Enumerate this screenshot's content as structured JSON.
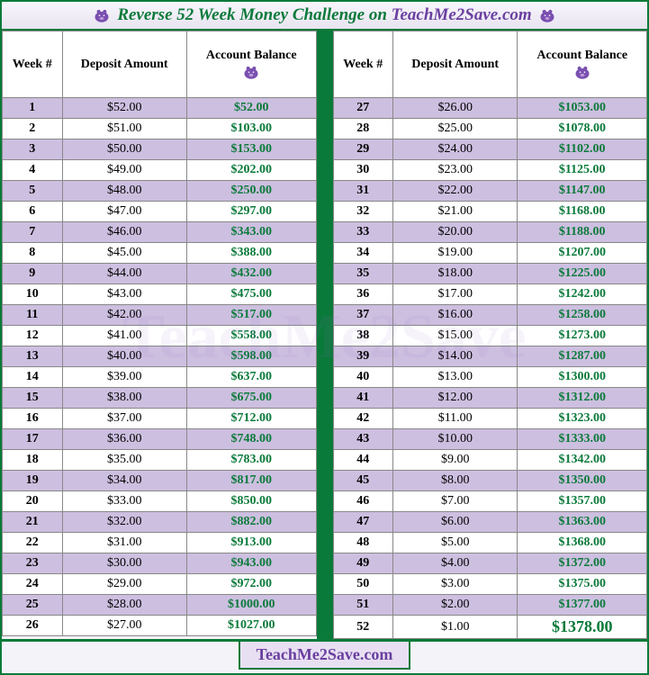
{
  "title": {
    "part1": "Reverse 52 Week Money Challenge on ",
    "part2": "TeachMe2Save.com"
  },
  "footer": "TeachMe2Save.com",
  "columns": [
    "Week #",
    "Deposit Amount",
    "Account Balance"
  ],
  "piggy_color": "#7a4fb0",
  "colors": {
    "green": "#0a7a3a",
    "purple": "#6a3fa0",
    "row_odd": "#cdbfe0",
    "row_even": "#ffffff",
    "border": "#888888"
  },
  "left": [
    {
      "w": "1",
      "d": "$52.00",
      "b": "$52.00"
    },
    {
      "w": "2",
      "d": "$51.00",
      "b": "$103.00"
    },
    {
      "w": "3",
      "d": "$50.00",
      "b": "$153.00"
    },
    {
      "w": "4",
      "d": "$49.00",
      "b": "$202.00"
    },
    {
      "w": "5",
      "d": "$48.00",
      "b": "$250.00"
    },
    {
      "w": "6",
      "d": "$47.00",
      "b": "$297.00"
    },
    {
      "w": "7",
      "d": "$46.00",
      "b": "$343.00"
    },
    {
      "w": "8",
      "d": "$45.00",
      "b": "$388.00"
    },
    {
      "w": "9",
      "d": "$44.00",
      "b": "$432.00"
    },
    {
      "w": "10",
      "d": "$43.00",
      "b": "$475.00"
    },
    {
      "w": "11",
      "d": "$42.00",
      "b": "$517.00"
    },
    {
      "w": "12",
      "d": "$41.00",
      "b": "$558.00"
    },
    {
      "w": "13",
      "d": "$40.00",
      "b": "$598.00"
    },
    {
      "w": "14",
      "d": "$39.00",
      "b": "$637.00"
    },
    {
      "w": "15",
      "d": "$38.00",
      "b": "$675.00"
    },
    {
      "w": "16",
      "d": "$37.00",
      "b": "$712.00"
    },
    {
      "w": "17",
      "d": "$36.00",
      "b": "$748.00"
    },
    {
      "w": "18",
      "d": "$35.00",
      "b": "$783.00"
    },
    {
      "w": "19",
      "d": "$34.00",
      "b": "$817.00"
    },
    {
      "w": "20",
      "d": "$33.00",
      "b": "$850.00"
    },
    {
      "w": "21",
      "d": "$32.00",
      "b": "$882.00"
    },
    {
      "w": "22",
      "d": "$31.00",
      "b": "$913.00"
    },
    {
      "w": "23",
      "d": "$30.00",
      "b": "$943.00"
    },
    {
      "w": "24",
      "d": "$29.00",
      "b": "$972.00"
    },
    {
      "w": "25",
      "d": "$28.00",
      "b": "$1000.00"
    },
    {
      "w": "26",
      "d": "$27.00",
      "b": "$1027.00"
    }
  ],
  "right": [
    {
      "w": "27",
      "d": "$26.00",
      "b": "$1053.00"
    },
    {
      "w": "28",
      "d": "$25.00",
      "b": "$1078.00"
    },
    {
      "w": "29",
      "d": "$24.00",
      "b": "$1102.00"
    },
    {
      "w": "30",
      "d": "$23.00",
      "b": "$1125.00"
    },
    {
      "w": "31",
      "d": "$22.00",
      "b": "$1147.00"
    },
    {
      "w": "32",
      "d": "$21.00",
      "b": "$1168.00"
    },
    {
      "w": "33",
      "d": "$20.00",
      "b": "$1188.00"
    },
    {
      "w": "34",
      "d": "$19.00",
      "b": "$1207.00"
    },
    {
      "w": "35",
      "d": "$18.00",
      "b": "$1225.00"
    },
    {
      "w": "36",
      "d": "$17.00",
      "b": "$1242.00"
    },
    {
      "w": "37",
      "d": "$16.00",
      "b": "$1258.00"
    },
    {
      "w": "38",
      "d": "$15.00",
      "b": "$1273.00"
    },
    {
      "w": "39",
      "d": "$14.00",
      "b": "$1287.00"
    },
    {
      "w": "40",
      "d": "$13.00",
      "b": "$1300.00"
    },
    {
      "w": "41",
      "d": "$12.00",
      "b": "$1312.00"
    },
    {
      "w": "42",
      "d": "$11.00",
      "b": "$1323.00"
    },
    {
      "w": "43",
      "d": "$10.00",
      "b": "$1333.00"
    },
    {
      "w": "44",
      "d": "$9.00",
      "b": "$1342.00"
    },
    {
      "w": "45",
      "d": "$8.00",
      "b": "$1350.00"
    },
    {
      "w": "46",
      "d": "$7.00",
      "b": "$1357.00"
    },
    {
      "w": "47",
      "d": "$6.00",
      "b": "$1363.00"
    },
    {
      "w": "48",
      "d": "$5.00",
      "b": "$1368.00"
    },
    {
      "w": "49",
      "d": "$4.00",
      "b": "$1372.00"
    },
    {
      "w": "50",
      "d": "$3.00",
      "b": "$1375.00"
    },
    {
      "w": "51",
      "d": "$2.00",
      "b": "$1377.00"
    },
    {
      "w": "52",
      "d": "$1.00",
      "b": "$1378.00"
    }
  ]
}
